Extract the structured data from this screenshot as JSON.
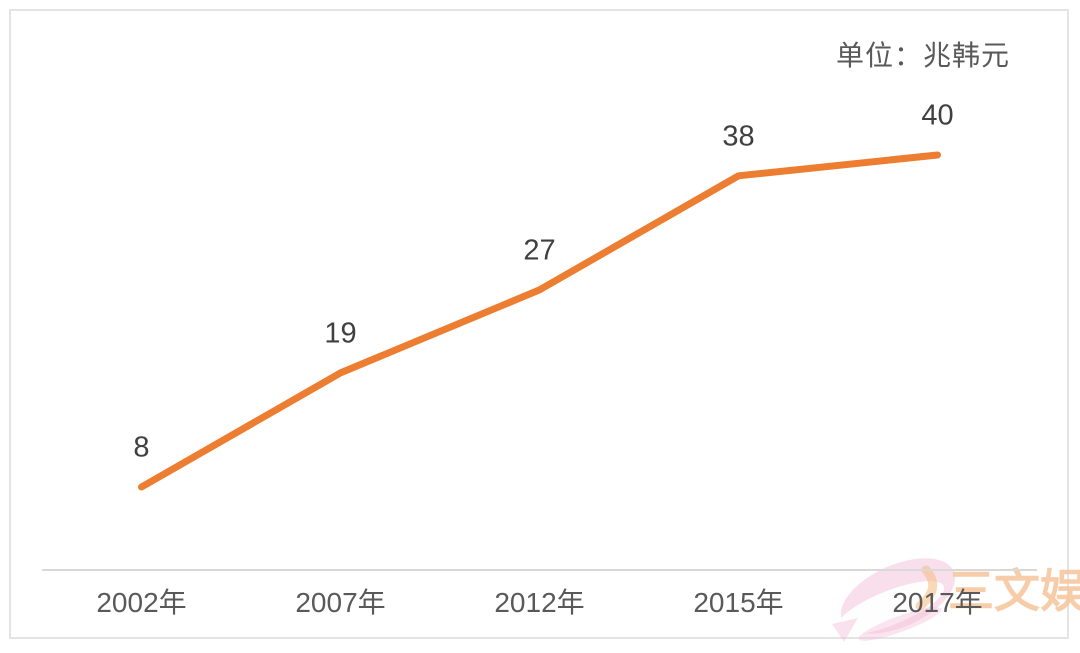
{
  "chart_data": {
    "type": "line",
    "categories": [
      "2002年",
      "2007年",
      "2012年",
      "2015年",
      "2017年"
    ],
    "values": [
      8,
      19,
      27,
      38,
      40
    ],
    "unit_label": "单位：兆韩元",
    "ylim": [
      0,
      43
    ],
    "grid": false,
    "legend": "none",
    "data_labels": true,
    "x_axis_line": true,
    "line_color": "#ED7D31",
    "data_label_color": "#404040",
    "axis_label_color": "#595959",
    "axis_line_color": "#D9D9D9"
  },
  "watermark": {
    "text": "三文娱",
    "text_color": "#F6C49A",
    "fish_color": "#F2BFD7"
  }
}
